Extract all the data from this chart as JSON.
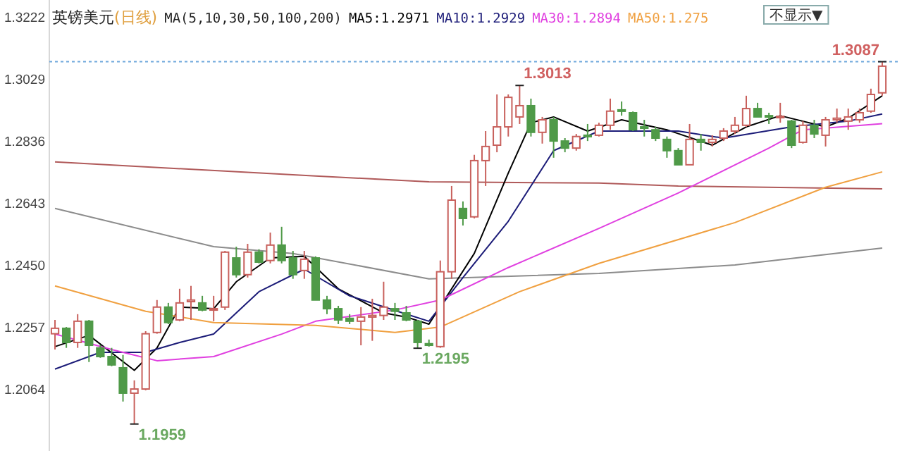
{
  "chart_data": {
    "type": "candlestick",
    "title": "英镑美元",
    "subtitle": "(日线)",
    "categories": [
      null,
      null,
      null,
      null,
      null,
      null,
      null,
      null,
      null,
      null,
      null,
      null,
      null,
      null,
      null,
      null,
      null,
      null,
      null,
      null,
      null,
      null,
      null,
      null,
      null,
      null,
      null,
      null,
      null,
      null,
      null,
      null,
      null,
      null,
      null,
      null,
      null,
      null,
      null,
      null,
      null,
      null,
      null,
      null,
      null,
      null,
      null,
      null,
      null,
      null,
      null,
      null,
      null,
      null,
      null,
      null,
      null,
      null,
      null,
      null,
      null,
      null,
      null,
      null,
      null,
      null,
      null,
      null,
      null,
      null,
      null,
      null,
      null,
      null
    ],
    "ohlc": [
      [
        1.224,
        1.2283,
        1.2191,
        1.2257
      ],
      [
        1.2257,
        1.2261,
        1.2196,
        1.2213
      ],
      [
        1.2213,
        1.2301,
        1.2196,
        1.2279
      ],
      [
        1.2279,
        1.2283,
        1.2152,
        1.2204
      ],
      [
        1.2196,
        1.2204,
        1.2165,
        1.2169
      ],
      [
        1.2169,
        1.2196,
        1.2139,
        1.2143
      ],
      [
        1.2134,
        1.2174,
        1.2029,
        1.2055
      ],
      [
        1.2055,
        1.2095,
        1.1959,
        1.2068
      ],
      [
        1.2068,
        1.2248,
        1.2064,
        1.224
      ],
      [
        1.2244,
        1.2345,
        1.224,
        1.2323
      ],
      [
        1.2323,
        1.2336,
        1.227,
        1.2275
      ],
      [
        1.2283,
        1.238,
        1.2279,
        1.2336
      ],
      [
        1.234,
        1.2389,
        1.2283,
        1.2345
      ],
      [
        1.2336,
        1.2358,
        1.231,
        1.2314
      ],
      [
        1.2314,
        1.2358,
        1.2279,
        1.2318
      ],
      [
        1.2323,
        1.2498,
        1.2314,
        1.2494
      ],
      [
        1.2476,
        1.2511,
        1.2415,
        1.2424
      ],
      [
        1.2424,
        1.252,
        1.2415,
        1.2494
      ],
      [
        1.2494,
        1.2503,
        1.2459,
        1.2463
      ],
      [
        1.2468,
        1.2555,
        1.2459,
        1.2516
      ],
      [
        1.2516,
        1.2573,
        1.2459,
        1.2468
      ],
      [
        1.2476,
        1.2498,
        1.2411,
        1.2424
      ],
      [
        1.2437,
        1.2498,
        1.2411,
        1.2472
      ],
      [
        1.2476,
        1.2481,
        1.2345,
        1.2345
      ],
      [
        1.2345,
        1.2358,
        1.2301,
        1.2318
      ],
      [
        1.2318,
        1.2327,
        1.227,
        1.2283
      ],
      [
        1.2288,
        1.2301,
        1.227,
        1.2279
      ],
      [
        1.2279,
        1.2323,
        1.2204,
        1.2292
      ],
      [
        1.2292,
        1.2349,
        1.2218,
        1.2297
      ],
      [
        1.2297,
        1.2402,
        1.2283,
        1.2323
      ],
      [
        1.2318,
        1.2336,
        1.2283,
        1.231
      ],
      [
        1.2305,
        1.2327,
        1.2279,
        1.2283
      ],
      [
        1.2279,
        1.2283,
        1.2195,
        1.2213
      ],
      [
        1.2209,
        1.2222,
        1.22,
        1.2204
      ],
      [
        1.22,
        1.2468,
        1.2196,
        1.2433
      ],
      [
        1.2433,
        1.27,
        1.2411,
        1.2656
      ],
      [
        1.263,
        1.2652,
        1.2577,
        1.2599
      ],
      [
        1.2604,
        1.2797,
        1.2599,
        1.2779
      ],
      [
        1.2779,
        1.2871,
        1.27,
        1.2823
      ],
      [
        1.2827,
        1.2985,
        1.2805,
        1.2884
      ],
      [
        1.2884,
        1.2985,
        1.2854,
        1.2976
      ],
      [
        1.2915,
        1.3013,
        1.2893,
        1.295
      ],
      [
        1.295,
        1.2972,
        1.2854,
        1.2867
      ],
      [
        1.2867,
        1.2915,
        1.2832,
        1.2906
      ],
      [
        1.2906,
        1.2915,
        1.2788,
        1.284
      ],
      [
        1.284,
        1.2849,
        1.2805,
        1.2818
      ],
      [
        1.2818,
        1.2862,
        1.281,
        1.2854
      ],
      [
        1.2858,
        1.2893,
        1.284,
        1.2856
      ],
      [
        1.2858,
        1.2897,
        1.2854,
        1.2889
      ],
      [
        1.2889,
        1.2972,
        1.2875,
        1.2933
      ],
      [
        1.2937,
        1.2963,
        1.2919,
        1.2935
      ],
      [
        1.2928,
        1.2932,
        1.2871,
        1.2875
      ],
      [
        1.2884,
        1.2906,
        1.2854,
        1.288
      ],
      [
        1.2875,
        1.2884,
        1.284,
        1.2849
      ],
      [
        1.2845,
        1.2854,
        1.2788,
        1.281
      ],
      [
        1.281,
        1.2818,
        1.2766,
        1.2766
      ],
      [
        1.2766,
        1.2893,
        1.2766,
        1.2845
      ],
      [
        1.2845,
        1.2862,
        1.281,
        1.2836
      ],
      [
        1.2836,
        1.2858,
        1.2823,
        1.2845
      ],
      [
        1.2849,
        1.288,
        1.284,
        1.2871
      ],
      [
        1.2871,
        1.2915,
        1.2862,
        1.2889
      ],
      [
        1.2889,
        1.2981,
        1.2884,
        1.2941
      ],
      [
        1.2941,
        1.2959,
        1.2915,
        1.2915
      ],
      [
        1.2919,
        1.2928,
        1.2893,
        1.2915
      ],
      [
        1.2915,
        1.2959,
        1.2897,
        1.2917
      ],
      [
        1.2902,
        1.2906,
        1.2818,
        1.2827
      ],
      [
        1.2836,
        1.2902,
        1.2832,
        1.2889
      ],
      [
        1.2889,
        1.2906,
        1.2849,
        1.2862
      ],
      [
        1.2858,
        1.2915,
        1.2823,
        1.2906
      ],
      [
        1.2906,
        1.2941,
        1.2897,
        1.2911
      ],
      [
        1.2902,
        1.2941,
        1.2875,
        1.2915
      ],
      [
        1.2906,
        1.2941,
        1.2897,
        1.2928
      ],
      [
        1.2933,
        1.3003,
        1.2928,
        1.2985
      ],
      [
        1.299,
        1.3087,
        1.2981,
        1.3073
      ]
    ],
    "ylim": [
      1.1875,
      1.3279
    ],
    "yticks": [
      1.2064,
      1.2257,
      {
        "value": 1.245,
        "label": "1.2450"
      },
      1.2643,
      1.2836,
      1.3029,
      1.3222
    ],
    "series": [
      {
        "type": "line",
        "color": "#b05a5a",
        "values": [
          1.2775,
          null,
          null,
          null,
          null,
          null,
          null,
          null,
          null,
          null,
          null,
          null,
          null,
          null,
          null,
          null,
          null,
          null,
          null,
          null,
          null,
          null,
          null,
          1.2731,
          null,
          null,
          null,
          null,
          null,
          null,
          null,
          null,
          null,
          1.2713,
          null,
          null,
          null,
          null,
          null,
          null,
          null,
          null,
          null,
          null,
          null,
          null,
          null,
          null,
          1.2709,
          null,
          null,
          null,
          null,
          null,
          null,
          1.27,
          null,
          null,
          null,
          null,
          null,
          null,
          null,
          null,
          null,
          null,
          null,
          null,
          null,
          null,
          null,
          null,
          null,
          1.2691
        ]
      },
      {
        "type": "line",
        "color": "#8c8c8c",
        "values": [
          1.263,
          null,
          null,
          null,
          null,
          null,
          null,
          null,
          null,
          null,
          null,
          null,
          null,
          null,
          1.2511,
          null,
          null,
          null,
          null,
          null,
          null,
          1.249,
          null,
          null,
          null,
          null,
          null,
          null,
          null,
          null,
          null,
          null,
          null,
          1.2411,
          null,
          null,
          null,
          null,
          null,
          null,
          null,
          null,
          null,
          null,
          null,
          null,
          null,
          null,
          1.2428,
          null,
          null,
          null,
          null,
          null,
          null,
          null,
          null,
          null,
          null,
          null,
          1.2454,
          null,
          null,
          null,
          null,
          null,
          null,
          null,
          null,
          null,
          null,
          null,
          null,
          1.2507
        ]
      },
      {
        "name": "MA5:1.2971",
        "type": "line",
        "color": "#000000",
        "values": [
          1.22,
          null,
          null,
          1.2235,
          null,
          null,
          null,
          1.2126,
          null,
          1.2196,
          null,
          1.2323,
          null,
          null,
          1.2318,
          null,
          1.2402,
          null,
          null,
          1.2476,
          null,
          null,
          1.2481,
          null,
          null,
          1.238,
          null,
          null,
          null,
          1.2305,
          null,
          1.2292,
          null,
          1.227,
          null,
          null,
          null,
          1.249,
          null,
          null,
          1.274,
          null,
          1.2897,
          null,
          1.2915,
          null,
          null,
          1.2871,
          null,
          null,
          1.2906,
          null,
          null,
          null,
          1.2875,
          null,
          null,
          null,
          1.2827,
          null,
          null,
          1.2884,
          null,
          null,
          1.2919,
          null,
          null,
          null,
          1.2884,
          null,
          1.2911,
          null,
          null,
          1.2981
        ]
      },
      {
        "name": "MA10:1.2929",
        "type": "line",
        "color": "#1c1c78",
        "values": [
          1.213,
          null,
          null,
          null,
          1.2182,
          null,
          null,
          null,
          1.2182,
          null,
          null,
          1.2213,
          null,
          null,
          1.2239,
          null,
          null,
          null,
          1.2371,
          null,
          null,
          null,
          1.2441,
          null,
          null,
          null,
          1.2358,
          null,
          null,
          null,
          null,
          1.2301,
          null,
          1.2279,
          null,
          null,
          1.2415,
          null,
          null,
          null,
          1.259,
          null,
          null,
          null,
          1.281,
          null,
          null,
          null,
          1.2871,
          null,
          null,
          null,
          null,
          null,
          null,
          1.2871,
          null,
          null,
          null,
          1.2849,
          null,
          null,
          null,
          null,
          null,
          1.2884,
          null,
          null,
          null,
          null,
          1.2902,
          null,
          null,
          1.2924
        ]
      },
      {
        "name": "MA30:1.2894",
        "type": "line",
        "color": "#e040e0",
        "values": [
          1.2239,
          null,
          null,
          null,
          null,
          1.2191,
          null,
          null,
          null,
          1.2156,
          null,
          null,
          null,
          null,
          1.2169,
          null,
          null,
          null,
          null,
          null,
          1.2239,
          null,
          null,
          1.2279,
          null,
          null,
          null,
          null,
          null,
          null,
          1.2314,
          null,
          null,
          null,
          1.2345,
          null,
          null,
          null,
          null,
          null,
          1.2446,
          null,
          null,
          null,
          null,
          null,
          null,
          null,
          1.2568,
          null,
          null,
          null,
          null,
          null,
          null,
          1.2678,
          null,
          null,
          null,
          null,
          null,
          null,
          null,
          1.2818,
          null,
          null,
          1.2875,
          null,
          null,
          null,
          null,
          null,
          null,
          1.2894
        ]
      },
      {
        "name": "MA50:1.275",
        "type": "line",
        "color": "#f0a040",
        "values": [
          1.2389,
          null,
          null,
          null,
          null,
          null,
          null,
          null,
          1.231,
          null,
          null,
          null,
          null,
          null,
          1.2275,
          null,
          null,
          null,
          null,
          null,
          null,
          null,
          null,
          1.2266,
          null,
          null,
          null,
          null,
          null,
          null,
          1.2244,
          null,
          null,
          null,
          1.2261,
          null,
          null,
          null,
          null,
          null,
          null,
          1.2371,
          null,
          null,
          null,
          null,
          null,
          null,
          1.2459,
          null,
          null,
          null,
          null,
          null,
          null,
          null,
          null,
          null,
          null,
          null,
          1.2586,
          null,
          null,
          null,
          null,
          null,
          null,
          null,
          1.2696,
          null,
          null,
          null,
          null,
          1.2744
        ]
      }
    ],
    "ref_lines": [
      {
        "axis": "y",
        "value": 1.3087,
        "color": "#6fa8dc",
        "line_style": "dotted"
      }
    ],
    "annotations": [
      "MA(5,10,30,50,100,200)",
      "不显示▼",
      "1.3013",
      {
        "text": "1.2195",
        "y": 1.2195
      },
      "1.1959",
      {
        "text": "1.3087",
        "y": 1.3087
      }
    ],
    "legend": "top",
    "grid": false
  }
}
